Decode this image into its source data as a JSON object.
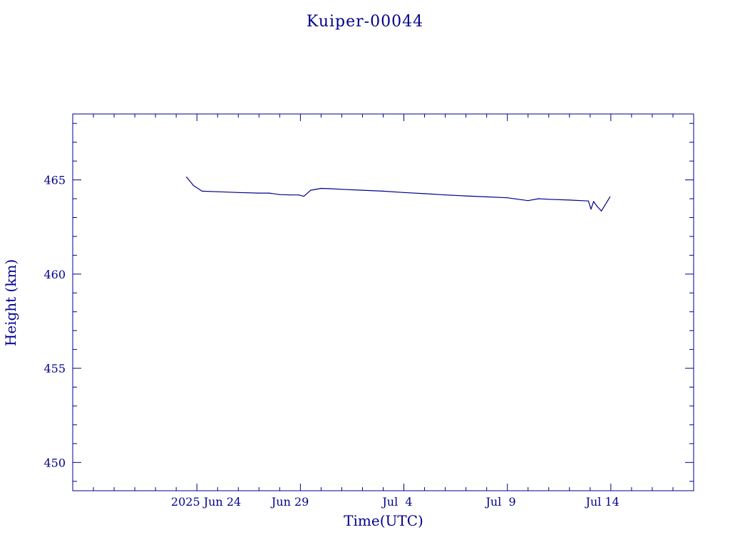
{
  "colors": {
    "foreground": "#00008B",
    "background": "#FFFFFF"
  },
  "chart_data": {
    "type": "line",
    "title": "Kuiper-00044",
    "xlabel": "Time(UTC)",
    "ylabel": "Height (km)",
    "x_unit": "date (UTC, 2025)",
    "xlim": [
      "2025-06-18",
      "2025-07-18"
    ],
    "ylim": [
      448.5,
      468.5
    ],
    "y_ticks": [
      450,
      455,
      460,
      465
    ],
    "y_tick_labels": [
      "450",
      "455",
      "460",
      "465"
    ],
    "x_ticks": [
      "2025-06-24",
      "2025-06-29",
      "2025-07-04",
      "2025-07-09",
      "2025-07-14"
    ],
    "x_tick_labels": [
      "2025 Jun 24",
      "Jun 29",
      "Jul  4",
      "Jul  9",
      "Jul 14"
    ],
    "grid": false,
    "series": [
      {
        "x": [
          "2025-06-23T12:00",
          "2025-06-23T20:00",
          "2025-06-24T06:00",
          "2025-06-25T00:00",
          "2025-06-26T00:00",
          "2025-06-27T00:00",
          "2025-06-27T12:00",
          "2025-06-28T00:00",
          "2025-06-28T12:00",
          "2025-06-28T22:00",
          "2025-06-29T04:00",
          "2025-06-29T12:00",
          "2025-06-30T00:00",
          "2025-06-30T12:00",
          "2025-07-01T00:00",
          "2025-07-02T00:00",
          "2025-07-03T00:00",
          "2025-07-04T00:00",
          "2025-07-05T00:00",
          "2025-07-06T00:00",
          "2025-07-07T00:00",
          "2025-07-08T00:00",
          "2025-07-09T00:00",
          "2025-07-10T00:00",
          "2025-07-10T12:00",
          "2025-07-11T00:00",
          "2025-07-12T00:00",
          "2025-07-12T22:00",
          "2025-07-13T01:00",
          "2025-07-13T04:00",
          "2025-07-13T08:00",
          "2025-07-13T13:00",
          "2025-07-13T23:00"
        ],
        "y": [
          465.15,
          464.7,
          464.4,
          464.37,
          464.33,
          464.3,
          464.3,
          464.22,
          464.2,
          464.2,
          464.13,
          464.45,
          464.55,
          464.53,
          464.5,
          464.45,
          464.4,
          464.33,
          464.27,
          464.2,
          464.15,
          464.1,
          464.05,
          463.9,
          464.0,
          463.97,
          463.93,
          463.88,
          463.45,
          463.85,
          463.6,
          463.35,
          464.1
        ]
      }
    ]
  }
}
